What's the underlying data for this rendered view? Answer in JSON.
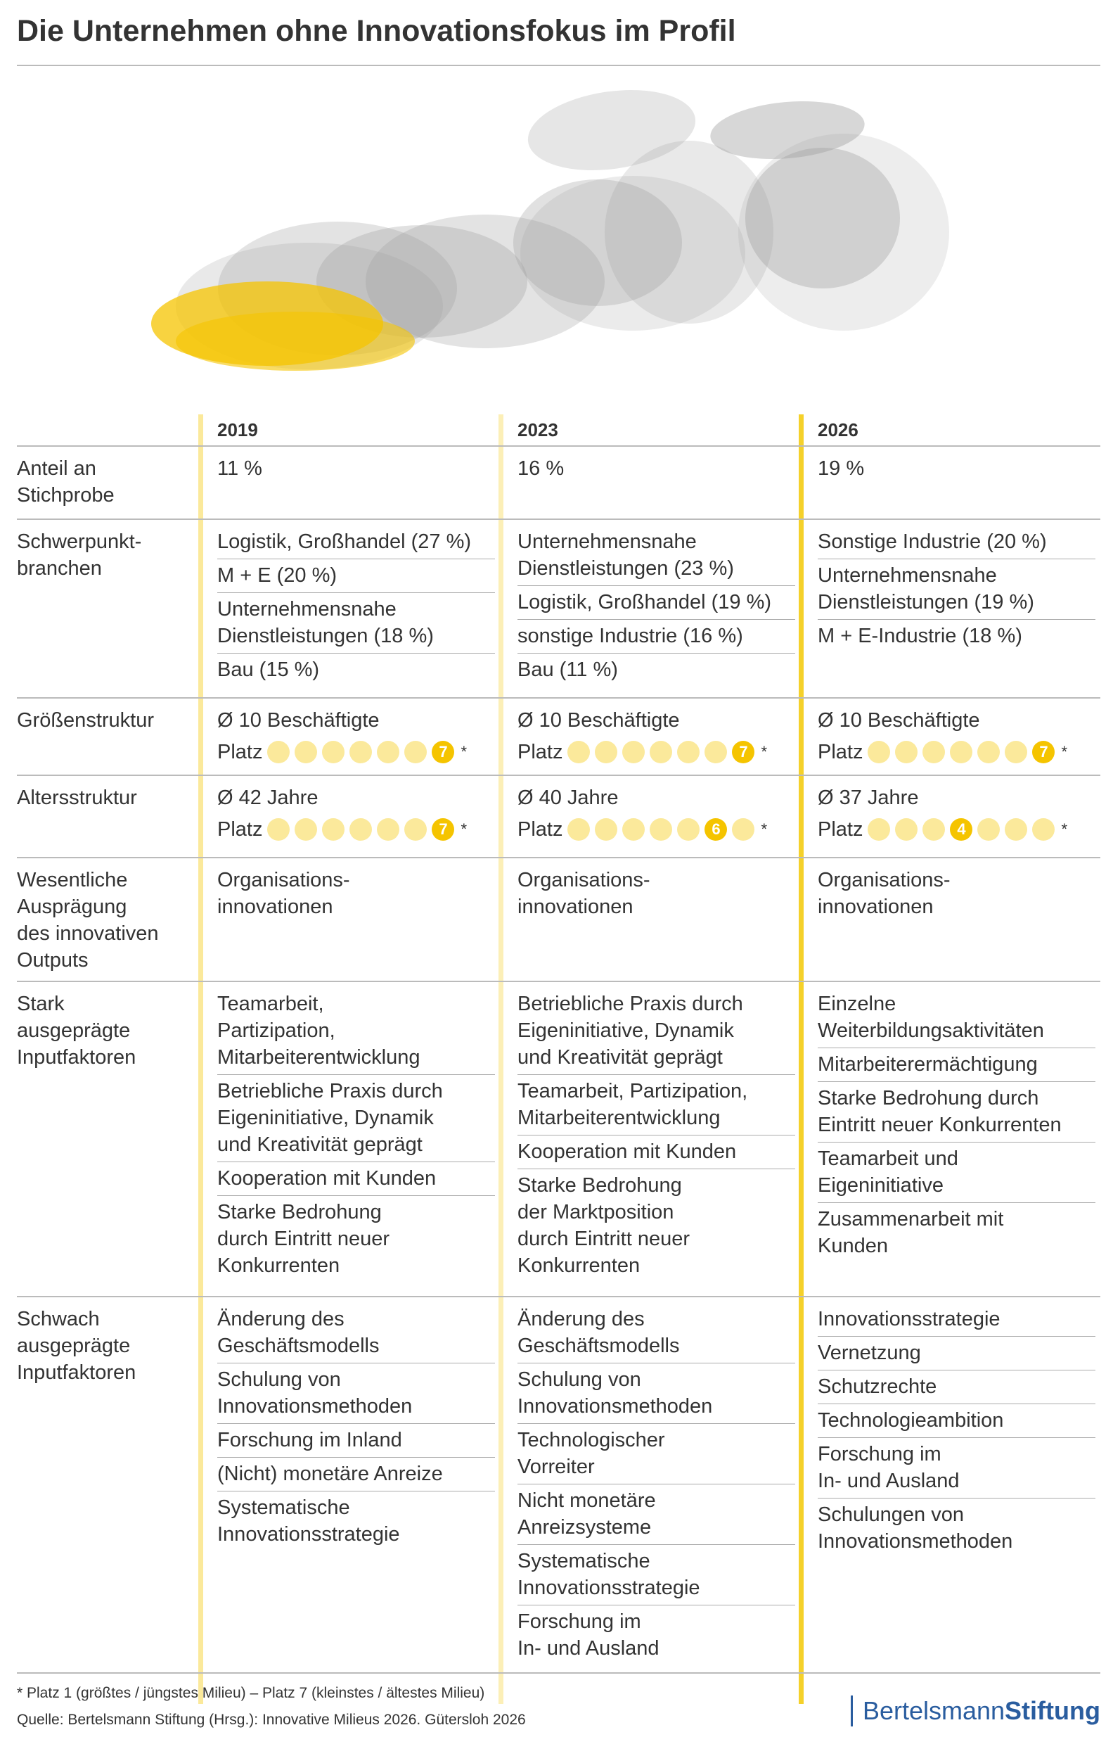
{
  "header": {
    "title": "Die Unternehmen ohne Innovationsfokus im Profil"
  },
  "table": {
    "columns": [
      "2019",
      "2023",
      "2026"
    ],
    "rows": [
      {
        "label": "Anteil an\nStichprobe",
        "cells": [
          [
            "11 %"
          ],
          [
            "16 %"
          ],
          [
            "19 %"
          ]
        ]
      },
      {
        "label": "Schwerpunkt-\nbranchen",
        "cells": [
          [
            "Logistik, Großhandel (27 %)",
            "M + E (20 %)",
            "Unternehmensnahe\nDienstleistungen (18 %)",
            "Bau (15 %)"
          ],
          [
            "Unternehmensnahe\nDienstleistungen (23 %)",
            "Logistik, Großhandel (19 %)",
            "sonstige Industrie (16 %)",
            "Bau (11 %)"
          ],
          [
            "Sonstige Industrie (20 %)",
            "Unternehmensnahe\nDienstleistungen (19 %)",
            "M + E-Industrie (18 %)"
          ]
        ]
      },
      {
        "label": "Größenstruktur",
        "ranked": [
          {
            "text": "Ø 10 Beschäftigte",
            "platz": "Platz",
            "rank": 7,
            "note": "*"
          },
          {
            "text": "Ø 10 Beschäftigte",
            "platz": "Platz",
            "rank": 7,
            "note": "*"
          },
          {
            "text": "Ø 10 Beschäftigte",
            "platz": "Platz",
            "rank": 7,
            "note": "*"
          }
        ]
      },
      {
        "label": "Altersstruktur",
        "ranked": [
          {
            "text": "Ø 42 Jahre",
            "platz": "Platz",
            "rank": 7,
            "note": "*"
          },
          {
            "text": "Ø 40 Jahre",
            "platz": "Platz",
            "rank": 6,
            "note": "*"
          },
          {
            "text": "Ø 37 Jahre",
            "platz": "Platz",
            "rank": 4,
            "note": "*"
          }
        ]
      },
      {
        "label": "Wesentliche\nAusprägung\ndes innovativen\nOutputs",
        "cells": [
          [
            "Organisations-\ninnovationen"
          ],
          [
            "Organisations-\ninnovationen"
          ],
          [
            "Organisations-\ninnovationen"
          ]
        ]
      },
      {
        "label": "Stark\nausgeprägte\nInputfaktoren",
        "cells": [
          [
            "Teamarbeit,\nPartizipation,\nMitarbeiterentwicklung",
            "Betriebliche Praxis durch\nEigeninitiative, Dynamik\nund Kreativität geprägt",
            "Kooperation mit Kunden",
            "Starke Bedrohung\ndurch Eintritt neuer\nKonkurrenten"
          ],
          [
            "Betriebliche Praxis durch\nEigeninitiative, Dynamik\nund Kreativität geprägt",
            "Teamarbeit, Partizipation,\nMitarbeiterentwicklung",
            "Kooperation mit Kunden",
            "Starke Bedrohung\nder Marktposition\ndurch Eintritt neuer\nKonkurrenten"
          ],
          [
            "Einzelne\nWeiterbildungsaktivitäten",
            "Mitarbeiterermächtigung",
            "Starke Bedrohung durch\nEintritt neuer Konkurrenten",
            "Teamarbeit und\nEigeninitiative",
            "Zusammenarbeit mit\nKunden"
          ]
        ]
      },
      {
        "label": "Schwach\nausgeprägte\nInputfaktoren",
        "cells": [
          [
            "Änderung des\nGeschäftsmodells",
            "Schulung von\nInnovationsmethoden",
            "Forschung im Inland",
            "(Nicht) monetäre Anreize",
            "Systematische\nInnovationsstrategie"
          ],
          [
            "Änderung des\nGeschäftsmodells",
            "Schulung von\nInnovationsmethoden",
            "Technologischer\nVorreiter",
            "Nicht monetäre\nAnreizsysteme",
            "Systematische\nInnovationsstrategie",
            "Forschung im\nIn- und Ausland"
          ],
          [
            "Innovationsstrategie",
            "Vernetzung",
            "Schutzrechte",
            "Technologieambition",
            "Forschung im\nIn- und Ausland",
            "Schulungen von\nInnovationsmethoden"
          ]
        ]
      }
    ]
  },
  "footer": {
    "note": "* Platz 1 (größtes / jüngstes Milieu) – Platz 7 (kleinstes / ältestes Milieu)",
    "source": "Quelle: Bertelsmann Stiftung (Hrsg.): Innovative Milieus 2026. Gütersloh 2026",
    "logo": [
      "Bertelsmann",
      "Stiftung"
    ]
  }
}
